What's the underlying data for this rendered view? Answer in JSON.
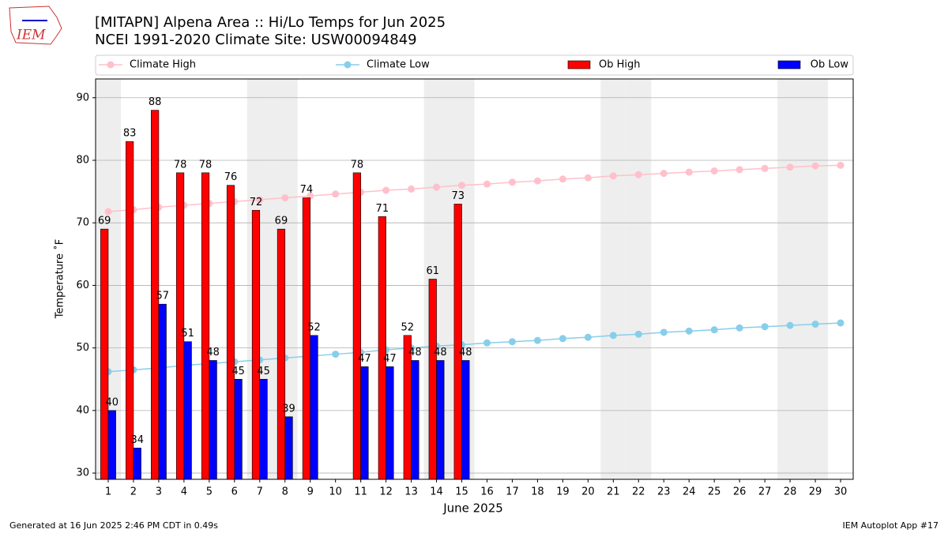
{
  "logo_text": "IEM",
  "footer_left": "Generated at 16 Jun 2025 2:46 PM CDT in 0.49s",
  "footer_right": "IEM Autoplot App #17",
  "chart_data": {
    "type": "combo",
    "title": "[MITAPN] Alpena Area :: Hi/Lo Temps for Jun 2025",
    "subtitle": "NCEI 1991-2020 Climate Site: USW00094849",
    "x_label": "June 2025",
    "y_label": "Temperature ˚F",
    "x": [
      1,
      2,
      3,
      4,
      5,
      6,
      7,
      8,
      9,
      10,
      11,
      12,
      13,
      14,
      15,
      16,
      17,
      18,
      19,
      20,
      21,
      22,
      23,
      24,
      25,
      26,
      27,
      28,
      29,
      30
    ],
    "xlim": [
      0.5,
      30.5
    ],
    "xticks": [
      1,
      2,
      3,
      4,
      5,
      6,
      7,
      8,
      9,
      10,
      11,
      12,
      13,
      14,
      15,
      16,
      17,
      18,
      19,
      20,
      21,
      22,
      23,
      24,
      25,
      26,
      27,
      28,
      29,
      30
    ],
    "ylim": [
      29,
      93
    ],
    "yticks": [
      30,
      40,
      50,
      60,
      70,
      80,
      90
    ],
    "grid": true,
    "shaded_days": [
      1,
      7,
      8,
      14,
      15,
      21,
      22,
      28,
      29
    ],
    "shade_color": "#eeeeee",
    "legend": "top",
    "series": [
      {
        "name": "Climate High",
        "type": "line",
        "color": "#ffc0cb",
        "values": [
          71.8,
          72.1,
          72.5,
          72.8,
          73.1,
          73.4,
          73.7,
          74.0,
          74.3,
          74.6,
          74.9,
          75.2,
          75.4,
          75.7,
          76.0,
          76.2,
          76.5,
          76.7,
          77.0,
          77.2,
          77.5,
          77.7,
          77.9,
          78.1,
          78.3,
          78.5,
          78.7,
          78.9,
          79.1,
          79.2
        ]
      },
      {
        "name": "Climate Low",
        "type": "line",
        "color": "#87ceeb",
        "values": [
          46.2,
          46.5,
          46.8,
          47.2,
          47.5,
          47.8,
          48.1,
          48.4,
          48.7,
          49.0,
          49.3,
          49.7,
          50.0,
          50.3,
          50.5,
          50.8,
          51.0,
          51.2,
          51.5,
          51.7,
          52.0,
          52.2,
          52.5,
          52.7,
          52.9,
          53.2,
          53.4,
          53.6,
          53.8,
          54.0
        ]
      },
      {
        "name": "Ob High",
        "type": "bar",
        "color": "#ff0000",
        "values": [
          69,
          83,
          88,
          78,
          78,
          76,
          72,
          69,
          74,
          null,
          78,
          71,
          52,
          61,
          73,
          null,
          null,
          null,
          null,
          null,
          null,
          null,
          null,
          null,
          null,
          null,
          null,
          null,
          null,
          null
        ]
      },
      {
        "name": "Ob Low",
        "type": "bar",
        "color": "#0000ff",
        "values": [
          40,
          34,
          57,
          51,
          48,
          45,
          45,
          39,
          52,
          null,
          47,
          47,
          48,
          48,
          48,
          null,
          null,
          null,
          null,
          null,
          null,
          null,
          null,
          null,
          null,
          null,
          null,
          null,
          null,
          null
        ]
      }
    ]
  }
}
